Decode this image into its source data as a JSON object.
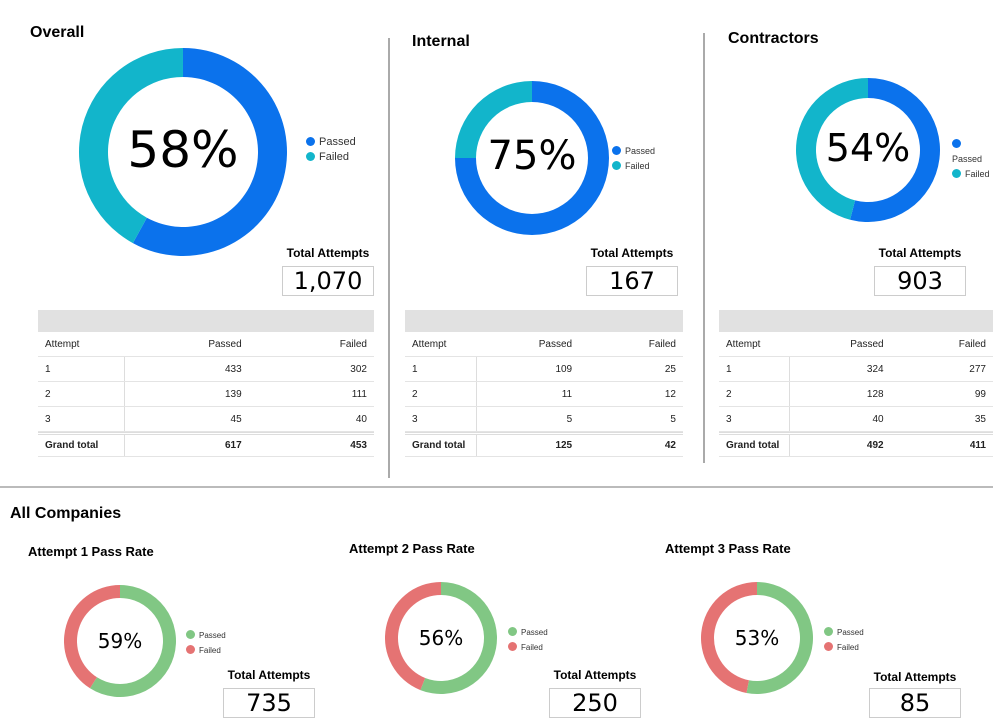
{
  "colors": {
    "passed_top": "#0b72ec",
    "failed_top": "#12b5cb",
    "passed_bottom": "#81c784",
    "failed_bottom": "#e57373"
  },
  "legend": {
    "passed": "Passed",
    "failed": "Failed"
  },
  "total_attempts_label": "Total Attempts",
  "table_headers": {
    "attempt": "Attempt",
    "passed": "Passed",
    "failed": "Failed"
  },
  "sections": [
    {
      "title": "Overall",
      "percent_label": "58%",
      "percent": 58,
      "total": "1,070",
      "rows": [
        {
          "attempt": "1",
          "passed": "433",
          "failed": "302"
        },
        {
          "attempt": "2",
          "passed": "139",
          "failed": "111"
        },
        {
          "attempt": "3",
          "passed": "45",
          "failed": "40"
        }
      ],
      "grand_total": {
        "label": "Grand total",
        "passed": "617",
        "failed": "453"
      }
    },
    {
      "title": "Internal",
      "percent_label": "75%",
      "percent": 75,
      "total": "167",
      "rows": [
        {
          "attempt": "1",
          "passed": "109",
          "failed": "25"
        },
        {
          "attempt": "2",
          "passed": "11",
          "failed": "12"
        },
        {
          "attempt": "3",
          "passed": "5",
          "failed": "5"
        }
      ],
      "grand_total": {
        "label": "Grand total",
        "passed": "125",
        "failed": "42"
      }
    },
    {
      "title": "Contractors",
      "percent_label": "54%",
      "percent": 54,
      "total": "903",
      "rows": [
        {
          "attempt": "1",
          "passed": "324",
          "failed": "277"
        },
        {
          "attempt": "2",
          "passed": "128",
          "failed": "99"
        },
        {
          "attempt": "3",
          "passed": "40",
          "failed": "35"
        }
      ],
      "grand_total": {
        "label": "Grand total",
        "passed": "492",
        "failed": "411"
      }
    }
  ],
  "all_companies": {
    "title": "All Companies",
    "attempts": [
      {
        "title": "Attempt 1 Pass Rate",
        "percent_label": "59%",
        "percent": 59,
        "total": "735"
      },
      {
        "title": "Attempt 2 Pass Rate",
        "percent_label": "56%",
        "percent": 56,
        "total": "250"
      },
      {
        "title": "Attempt 3 Pass Rate",
        "percent_label": "53%",
        "percent": 53,
        "total": "85"
      }
    ]
  }
}
